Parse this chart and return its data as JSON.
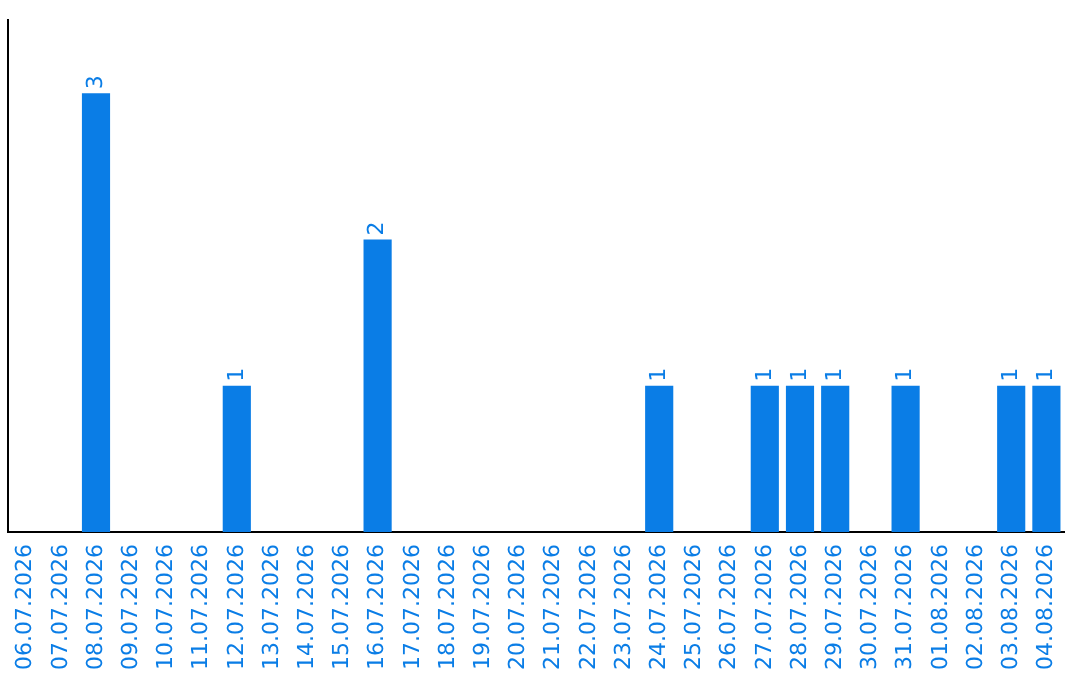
{
  "chart_data": {
    "type": "bar",
    "categories": [
      "06.07.2026",
      "07.07.2026",
      "08.07.2026",
      "09.07.2026",
      "10.07.2026",
      "11.07.2026",
      "12.07.2026",
      "13.07.2026",
      "14.07.2026",
      "15.07.2026",
      "16.07.2026",
      "17.07.2026",
      "18.07.2026",
      "19.07.2026",
      "20.07.2026",
      "21.07.2026",
      "22.07.2026",
      "23.07.2026",
      "24.07.2026",
      "25.07.2026",
      "26.07.2026",
      "27.07.2026",
      "28.07.2026",
      "29.07.2026",
      "30.07.2026",
      "31.07.2026",
      "01.08.2026",
      "02.08.2026",
      "03.08.2026",
      "04.08.2026"
    ],
    "values": [
      0,
      0,
      3,
      0,
      0,
      0,
      1,
      0,
      0,
      0,
      2,
      0,
      0,
      0,
      0,
      0,
      0,
      0,
      1,
      0,
      0,
      1,
      1,
      1,
      0,
      1,
      0,
      0,
      1,
      1
    ],
    "value_labels": [
      null,
      null,
      "3",
      null,
      null,
      null,
      "1",
      null,
      null,
      null,
      "2",
      null,
      null,
      null,
      null,
      null,
      null,
      null,
      "1",
      null,
      null,
      "1",
      "1",
      "1",
      null,
      "1",
      null,
      null,
      "1",
      "1"
    ],
    "color": "#0a7de6",
    "grid": false,
    "legend": false,
    "tick_labels": "x"
  }
}
